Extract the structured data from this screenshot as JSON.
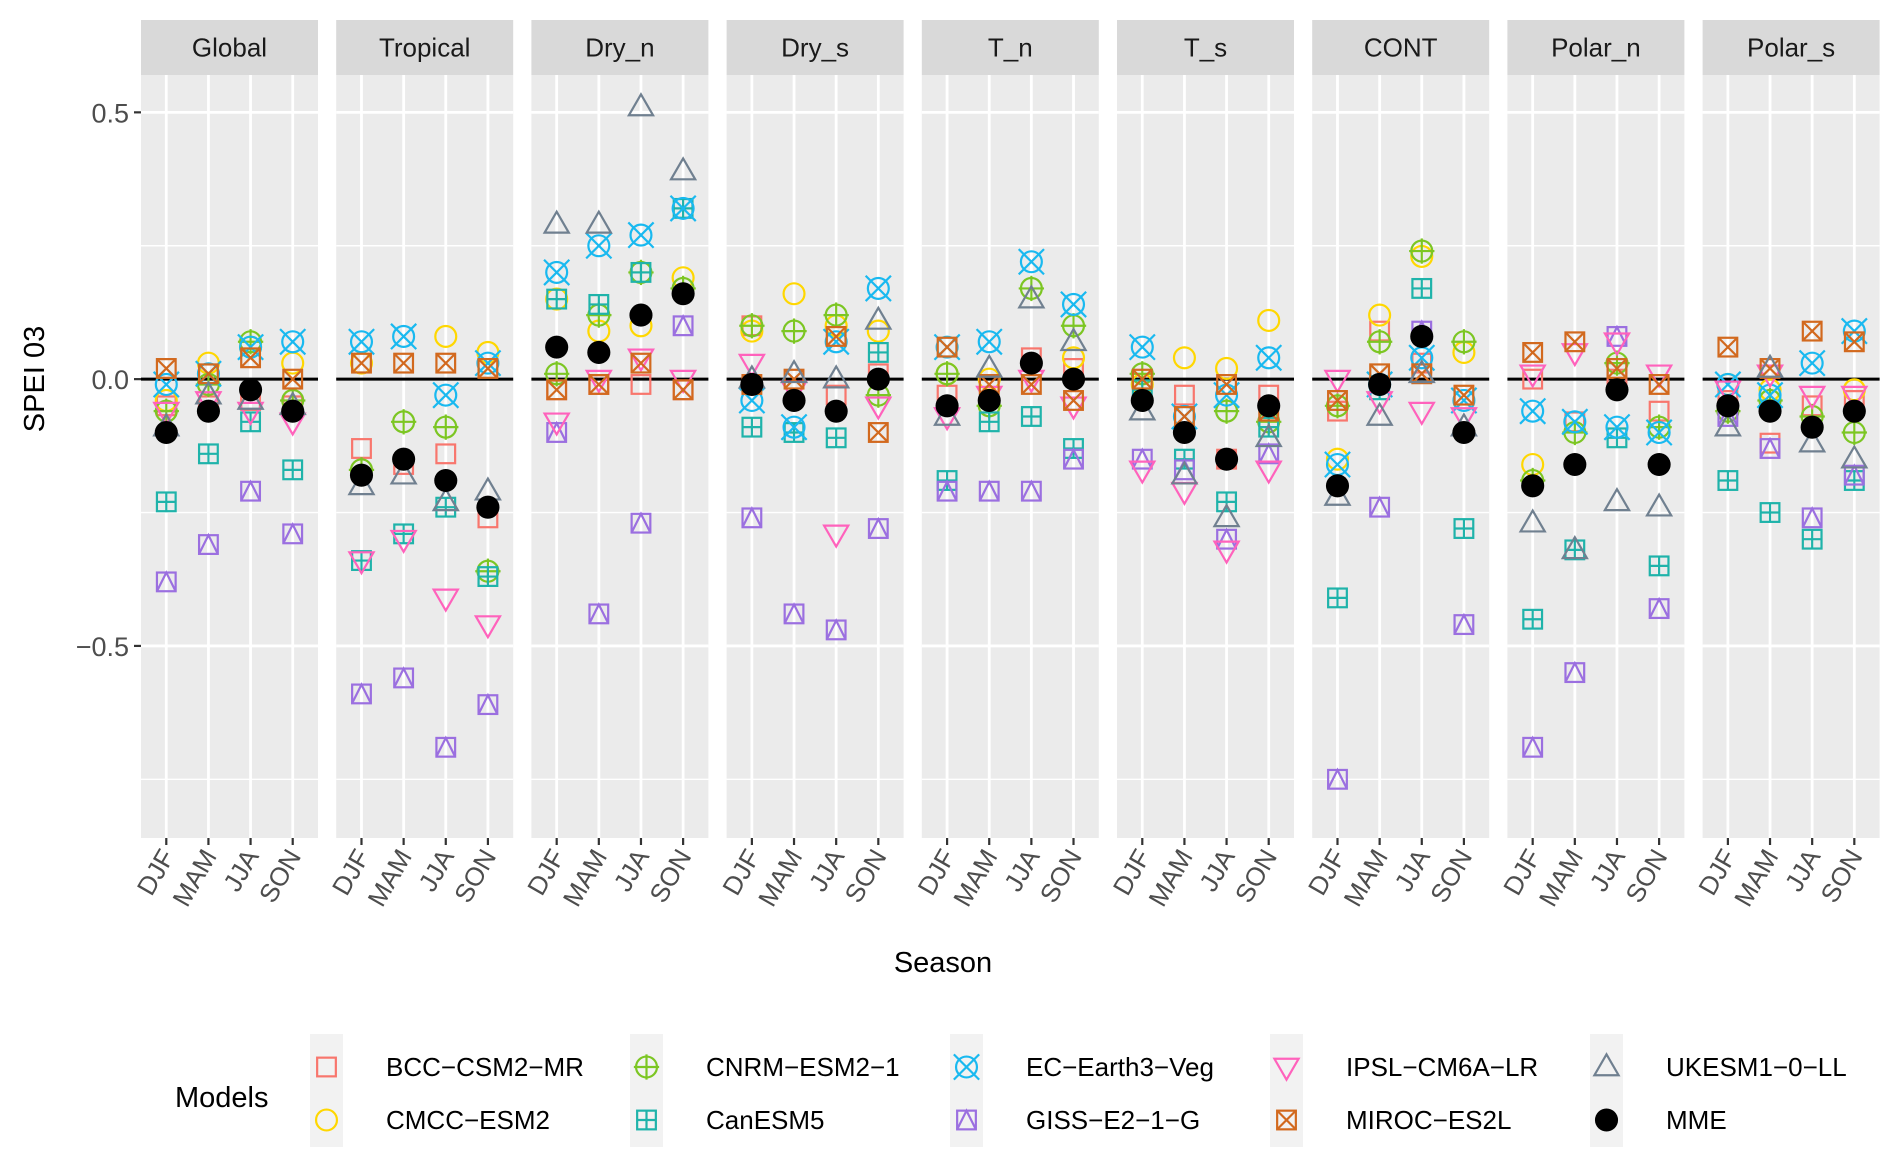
{
  "chart_data": {
    "type": "scatter",
    "title": "",
    "xlabel": "Season",
    "ylabel": "SPEI 03",
    "ylim": [
      -0.86,
      0.57
    ],
    "yticks": [
      0.5,
      0.0,
      -0.5
    ],
    "ytick_labels": [
      "0.5",
      "0.0",
      "−0.5"
    ],
    "reference_line": 0.0,
    "grid": true,
    "categories": [
      "DJF",
      "MAM",
      "JJA",
      "SON"
    ],
    "panels": [
      "Global",
      "Tropical",
      "Dry_n",
      "Dry_s",
      "T_n",
      "T_s",
      "CONT",
      "Polar_n",
      "Polar_s"
    ],
    "legend": {
      "title": "Models",
      "placement": "bottom",
      "items": [
        {
          "name": "BCC-CSM2-MR",
          "label": "BCC−CSM2−MR",
          "shape": "square",
          "color": "#F8766D"
        },
        {
          "name": "CMCC-ESM2",
          "label": "CMCC−ESM2",
          "shape": "circle",
          "color": "#FFD700"
        },
        {
          "name": "CNRM-ESM2-1",
          "label": "CNRM−ESM2−1",
          "shape": "circle-plus",
          "color": "#7CC623"
        },
        {
          "name": "CanESM5",
          "label": "CanESM5",
          "shape": "square-plus",
          "color": "#1FB3AA"
        },
        {
          "name": "EC-Earth3-Veg",
          "label": "EC−Earth3−Veg",
          "shape": "circle-cross",
          "color": "#19B9F0"
        },
        {
          "name": "GISS-E2-1-G",
          "label": "GISS−E2−1−G",
          "shape": "square-triangle",
          "color": "#9B6FE0"
        },
        {
          "name": "IPSL-CM6A-LR",
          "label": "IPSL−CM6A−LR",
          "shape": "triangle-down",
          "color": "#FF62BC"
        },
        {
          "name": "MIROC-ES2L",
          "label": "MIROC−ES2L",
          "shape": "square-cross",
          "color": "#D2691E"
        },
        {
          "name": "UKESM1-0-LL",
          "label": "UKESM1−0−LL",
          "shape": "triangle-up",
          "color": "#708090"
        },
        {
          "name": "MME",
          "label": "MME",
          "shape": "filled-circle",
          "color": "#000000"
        }
      ]
    },
    "series": {
      "Global": {
        "BCC-CSM2-MR": [
          -0.05,
          -0.05,
          -0.04,
          -0.05
        ],
        "CMCC-ESM2": [
          -0.04,
          0.03,
          0.06,
          0.03
        ],
        "CNRM-ESM2-1": [
          -0.06,
          -0.01,
          0.07,
          -0.04
        ],
        "CanESM5": [
          -0.23,
          -0.14,
          -0.08,
          -0.17
        ],
        "EC-Earth3-Veg": [
          -0.01,
          0.01,
          0.06,
          0.07
        ],
        "GISS-E2-1-G": [
          -0.38,
          -0.31,
          -0.21,
          -0.29
        ],
        "IPSL-CM6A-LR": [
          -0.06,
          -0.04,
          -0.06,
          -0.08
        ],
        "MIROC-ES2L": [
          0.02,
          0.01,
          0.04,
          0.0
        ],
        "UKESM1-0-LL": [
          -0.09,
          -0.03,
          -0.04,
          -0.05
        ],
        "MME": [
          -0.1,
          -0.06,
          -0.02,
          -0.06
        ]
      },
      "Tropical": {
        "BCC-CSM2-MR": [
          -0.13,
          -0.16,
          -0.14,
          -0.26
        ],
        "CMCC-ESM2": [
          0.03,
          null,
          0.08,
          0.05
        ],
        "CNRM-ESM2-1": [
          -0.17,
          -0.08,
          -0.09,
          -0.36
        ],
        "CanESM5": [
          -0.34,
          -0.29,
          -0.24,
          -0.37
        ],
        "EC-Earth3-Veg": [
          0.07,
          0.08,
          -0.03,
          0.03
        ],
        "GISS-E2-1-G": [
          -0.59,
          -0.56,
          -0.69,
          -0.61
        ],
        "IPSL-CM6A-LR": [
          -0.34,
          -0.3,
          -0.41,
          -0.46
        ],
        "MIROC-ES2L": [
          0.03,
          0.03,
          0.03,
          0.02
        ],
        "UKESM1-0-LL": [
          -0.2,
          -0.18,
          -0.23,
          -0.21
        ],
        "MME": [
          -0.18,
          -0.15,
          -0.19,
          -0.24
        ]
      },
      "Dry_n": {
        "BCC-CSM2-MR": [
          -0.02,
          -0.01,
          -0.01,
          -0.02
        ],
        "CMCC-ESM2": [
          0.15,
          0.09,
          0.1,
          0.19
        ],
        "CNRM-ESM2-1": [
          0.01,
          0.12,
          0.2,
          0.17
        ],
        "CanESM5": [
          0.15,
          0.14,
          0.2,
          0.32
        ],
        "EC-Earth3-Veg": [
          0.2,
          0.25,
          0.27,
          0.32
        ],
        "GISS-E2-1-G": [
          -0.1,
          -0.44,
          -0.27,
          0.1
        ],
        "IPSL-CM6A-LR": [
          -0.08,
          0.0,
          0.04,
          0.0
        ],
        "MIROC-ES2L": [
          -0.02,
          -0.01,
          0.03,
          -0.02
        ],
        "UKESM1-0-LL": [
          0.29,
          0.29,
          0.51,
          0.39
        ],
        "MME": [
          0.06,
          0.05,
          0.12,
          0.16
        ]
      },
      "Dry_s": {
        "BCC-CSM2-MR": [
          0.1,
          null,
          -0.03,
          0.01
        ],
        "CMCC-ESM2": [
          0.09,
          0.16,
          0.1,
          0.09
        ],
        "CNRM-ESM2-1": [
          0.1,
          0.09,
          0.12,
          -0.03
        ],
        "CanESM5": [
          -0.09,
          -0.1,
          -0.11,
          0.05
        ],
        "EC-Earth3-Veg": [
          -0.04,
          -0.09,
          0.07,
          0.17
        ],
        "GISS-E2-1-G": [
          -0.26,
          -0.44,
          -0.47,
          -0.28
        ],
        "IPSL-CM6A-LR": [
          0.03,
          -0.02,
          -0.29,
          -0.05
        ],
        "MIROC-ES2L": [
          -0.01,
          0.0,
          0.08,
          -0.1
        ],
        "UKESM1-0-LL": [
          0.0,
          0.01,
          0.0,
          0.11
        ],
        "MME": [
          -0.01,
          -0.04,
          -0.06,
          0.0
        ]
      },
      "T_n": {
        "BCC-CSM2-MR": [
          -0.03,
          null,
          0.04,
          0.02
        ],
        "CMCC-ESM2": [
          0.01,
          0.0,
          null,
          0.04
        ],
        "CNRM-ESM2-1": [
          0.01,
          -0.05,
          0.17,
          0.1
        ],
        "CanESM5": [
          -0.19,
          -0.08,
          -0.07,
          -0.13
        ],
        "EC-Earth3-Veg": [
          0.06,
          0.07,
          0.22,
          0.14
        ],
        "GISS-E2-1-G": [
          -0.21,
          -0.21,
          -0.21,
          -0.15
        ],
        "IPSL-CM6A-LR": [
          -0.07,
          -0.03,
          0.0,
          -0.05
        ],
        "MIROC-ES2L": [
          0.06,
          -0.01,
          -0.01,
          -0.04
        ],
        "UKESM1-0-LL": [
          -0.07,
          0.02,
          0.15,
          0.07
        ],
        "MME": [
          -0.05,
          -0.04,
          0.03,
          0.0
        ]
      },
      "T_s": {
        "BCC-CSM2-MR": [
          null,
          -0.03,
          -0.15,
          -0.03
        ],
        "CMCC-ESM2": [
          -0.01,
          0.04,
          0.02,
          0.11
        ],
        "CNRM-ESM2-1": [
          0.01,
          null,
          -0.06,
          -0.08
        ],
        "CanESM5": [
          -0.02,
          -0.15,
          -0.23,
          -0.09
        ],
        "EC-Earth3-Veg": [
          0.06,
          -0.07,
          -0.03,
          0.04
        ],
        "GISS-E2-1-G": [
          -0.15,
          -0.17,
          -0.3,
          -0.14
        ],
        "IPSL-CM6A-LR": [
          -0.17,
          -0.21,
          -0.32,
          -0.17
        ],
        "MIROC-ES2L": [
          0.0,
          -0.07,
          -0.01,
          -0.06
        ],
        "UKESM1-0-LL": [
          -0.06,
          -0.18,
          -0.26,
          -0.11
        ],
        "MME": [
          -0.04,
          -0.1,
          -0.15,
          -0.05
        ]
      },
      "CONT": {
        "BCC-CSM2-MR": [
          -0.06,
          0.09,
          0.03,
          null
        ],
        "CMCC-ESM2": [
          -0.15,
          0.12,
          0.23,
          0.05
        ],
        "CNRM-ESM2-1": [
          -0.05,
          0.07,
          0.24,
          0.07
        ],
        "CanESM5": [
          -0.41,
          -0.02,
          0.17,
          -0.28
        ],
        "EC-Earth3-Veg": [
          -0.16,
          -0.01,
          0.04,
          -0.04
        ],
        "GISS-E2-1-G": [
          -0.75,
          -0.24,
          0.09,
          -0.46
        ],
        "IPSL-CM6A-LR": [
          0.0,
          -0.04,
          -0.06,
          -0.07
        ],
        "MIROC-ES2L": [
          -0.04,
          0.01,
          0.01,
          -0.03
        ],
        "UKESM1-0-LL": [
          -0.22,
          -0.07,
          0.01,
          -0.09
        ],
        "MME": [
          -0.2,
          -0.01,
          0.08,
          -0.1
        ]
      },
      "Polar_n": {
        "BCC-CSM2-MR": [
          0.0,
          -0.08,
          0.0,
          -0.06
        ],
        "CMCC-ESM2": [
          -0.16,
          null,
          null,
          null
        ],
        "CNRM-ESM2-1": [
          -0.19,
          -0.1,
          0.03,
          -0.09
        ],
        "CanESM5": [
          -0.45,
          -0.32,
          -0.11,
          -0.35
        ],
        "EC-Earth3-Veg": [
          -0.06,
          -0.08,
          -0.09,
          -0.1
        ],
        "GISS-E2-1-G": [
          -0.69,
          -0.55,
          0.08,
          -0.43
        ],
        "IPSL-CM6A-LR": [
          0.01,
          0.05,
          0.07,
          0.01
        ],
        "MIROC-ES2L": [
          0.05,
          0.07,
          0.02,
          -0.01
        ],
        "UKESM1-0-LL": [
          -0.27,
          -0.32,
          -0.23,
          -0.24
        ],
        "MME": [
          -0.2,
          -0.16,
          -0.02,
          -0.16
        ]
      },
      "Polar_s": {
        "BCC-CSM2-MR": [
          -0.04,
          -0.12,
          -0.05,
          -0.04
        ],
        "CMCC-ESM2": [
          -0.01,
          -0.02,
          null,
          -0.02
        ],
        "CNRM-ESM2-1": [
          -0.06,
          -0.04,
          -0.07,
          -0.1
        ],
        "CanESM5": [
          -0.19,
          -0.25,
          -0.3,
          -0.19
        ],
        "EC-Earth3-Veg": [
          -0.01,
          -0.03,
          0.03,
          0.09
        ],
        "GISS-E2-1-G": [
          -0.07,
          -0.13,
          -0.26,
          -0.18
        ],
        "IPSL-CM6A-LR": [
          -0.02,
          0.01,
          -0.03,
          -0.03
        ],
        "MIROC-ES2L": [
          0.06,
          0.02,
          0.09,
          0.07
        ],
        "UKESM1-0-LL": [
          -0.09,
          0.02,
          -0.12,
          -0.15
        ],
        "MME": [
          -0.05,
          -0.06,
          -0.09,
          -0.06
        ]
      }
    }
  }
}
